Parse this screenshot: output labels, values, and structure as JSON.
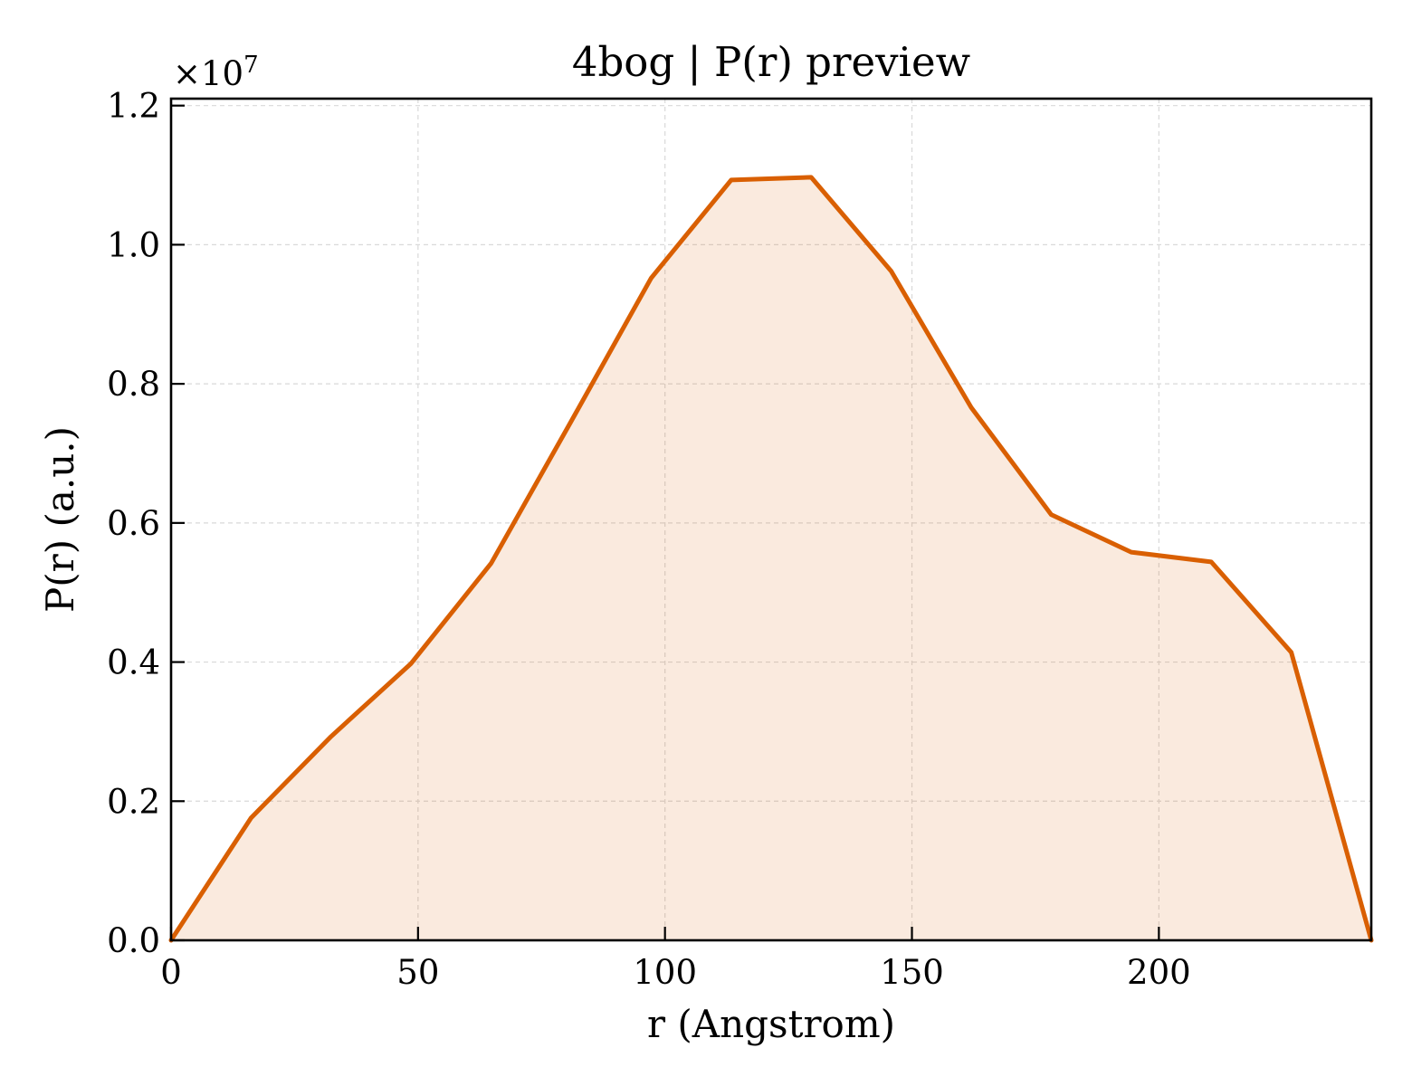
{
  "chart_data": {
    "type": "area",
    "title": "4bog | P(r) preview",
    "xlabel": "r (Angstrom)",
    "ylabel": "P(r) (a.u.)",
    "y_offset_label": "×10",
    "y_offset_exponent": "7",
    "xlim": [
      0,
      243
    ],
    "ylim": [
      0,
      1.21
    ],
    "y_scale_factor": 10000000,
    "x_ticks": [
      0,
      50,
      100,
      150,
      200
    ],
    "x_tick_labels": [
      "0",
      "50",
      "100",
      "150",
      "200"
    ],
    "y_ticks": [
      0,
      0.2,
      0.4,
      0.6,
      0.8,
      1.0,
      1.2
    ],
    "y_tick_labels": [
      "0.0",
      "0.2",
      "0.4",
      "0.6",
      "0.8",
      "1.0",
      "1.2"
    ],
    "grid": true,
    "series": [
      {
        "line_color": "#d95f02",
        "fill_color": "#d95f02",
        "fill_opacity": 0.13,
        "x": [
          0,
          16.2,
          32.4,
          48.6,
          64.8,
          81.0,
          97.2,
          113.4,
          129.6,
          145.8,
          162.0,
          178.2,
          194.4,
          210.6,
          226.8,
          243.0
        ],
        "y": [
          0.0,
          0.176,
          0.293,
          0.398,
          0.542,
          0.746,
          0.952,
          1.093,
          1.097,
          0.962,
          0.766,
          0.612,
          0.558,
          0.544,
          0.414,
          0.0
        ]
      }
    ]
  }
}
